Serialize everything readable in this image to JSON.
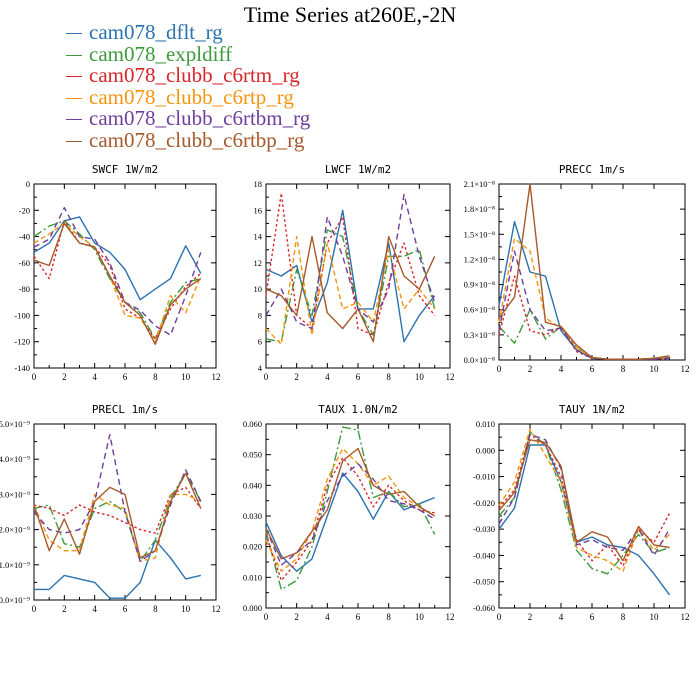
{
  "title": "Time Series at260E,-2N",
  "legend": [
    {
      "label": "cam078_dflt_rg",
      "color": "#2a72b0",
      "dash": ""
    },
    {
      "label": "cam078_expldiff",
      "color": "#3c9a3c",
      "dash": "9 3 2 3"
    },
    {
      "label": "cam078_clubb_c6rtm_rg",
      "color": "#d7262b",
      "dash": "2.5 2.5"
    },
    {
      "label": "cam078_clubb_c6rtp_rg",
      "color": "#f4950f",
      "dash": "5 3"
    },
    {
      "label": "cam078_clubb_c6rtbm_rg",
      "color": "#6e3f9c",
      "dash": "6 4"
    },
    {
      "label": "cam078_clubb_c6rtbp_rg",
      "color": "#a55a2c",
      "dash": ""
    }
  ],
  "chart_data": [
    {
      "type": "line",
      "title": "SWCF   1W/m2",
      "x": [
        0,
        1,
        2,
        3,
        4,
        5,
        6,
        7,
        8,
        9,
        10,
        11
      ],
      "xlim": [
        0,
        12
      ],
      "xticks": [
        "0",
        "2",
        "4",
        "6",
        "8",
        "10",
        "12"
      ],
      "ylim": [
        -140,
        0
      ],
      "yticks": [
        "0",
        "-20",
        "-40",
        "-60",
        "-80",
        "-100",
        "-120",
        "-140"
      ],
      "series": [
        {
          "values": [
            -52,
            -45,
            -28,
            -25,
            -45,
            -52,
            -65,
            -88,
            -80,
            -72,
            -47,
            -68
          ]
        },
        {
          "values": [
            -40,
            -32,
            -28,
            -38,
            -50,
            -72,
            -90,
            -98,
            -118,
            -90,
            -75,
            -72
          ]
        },
        {
          "values": [
            -55,
            -72,
            -28,
            -45,
            -48,
            -62,
            -95,
            -102,
            -118,
            -95,
            -78,
            -68
          ]
        },
        {
          "values": [
            -45,
            -38,
            -30,
            -40,
            -48,
            -70,
            -100,
            -102,
            -120,
            -85,
            -98,
            -70
          ]
        },
        {
          "values": [
            -48,
            -42,
            -18,
            -40,
            -42,
            -60,
            -90,
            -96,
            -108,
            -115,
            -85,
            -52
          ]
        },
        {
          "values": [
            -58,
            -62,
            -30,
            -45,
            -48,
            -70,
            -90,
            -100,
            -122,
            -92,
            -80,
            -72
          ]
        }
      ]
    },
    {
      "type": "line",
      "title": "LWCF   1W/m2",
      "x": [
        0,
        1,
        2,
        3,
        4,
        5,
        6,
        7,
        8,
        9,
        10,
        11
      ],
      "xlim": [
        0,
        12
      ],
      "xticks": [
        "0",
        "2",
        "4",
        "6",
        "8",
        "10",
        "12"
      ],
      "ylim": [
        4,
        18
      ],
      "yticks": [
        "18",
        "16",
        "14",
        "12",
        "10",
        "8",
        "6",
        "4"
      ],
      "series": [
        {
          "values": [
            11.5,
            11,
            11.8,
            7.5,
            10.5,
            16,
            8.5,
            8.5,
            13.5,
            6,
            8,
            9.5
          ]
        },
        {
          "values": [
            6.2,
            6,
            11.5,
            8,
            14.5,
            14,
            8.5,
            6.5,
            12.5,
            12.5,
            13,
            8.5
          ]
        },
        {
          "values": [
            9.5,
            17.3,
            8,
            7,
            13.5,
            15.5,
            7,
            6.5,
            10.5,
            13.5,
            9.5,
            8
          ]
        },
        {
          "values": [
            7,
            5.8,
            14,
            6.5,
            13.5,
            8.5,
            9,
            7.5,
            13,
            8.5,
            10,
            8.5
          ]
        },
        {
          "values": [
            8,
            10,
            7.5,
            7,
            15.5,
            12.5,
            8.5,
            7.5,
            10,
            17.2,
            12.5,
            9
          ]
        },
        {
          "values": [
            10,
            9.5,
            8,
            14,
            8.2,
            7,
            8.5,
            6,
            14,
            11,
            10,
            12.5
          ]
        }
      ]
    },
    {
      "type": "line",
      "title": "PRECC   1m/s",
      "x": [
        0,
        1,
        2,
        3,
        4,
        5,
        6,
        7,
        8,
        9,
        10,
        11
      ],
      "xlim": [
        0,
        12
      ],
      "xticks": [
        "0",
        "2",
        "4",
        "6",
        "8",
        "10",
        "12"
      ],
      "ylim": [
        0,
        2.1e-08
      ],
      "yticks": [
        "2.1×10⁻⁸",
        "1.8×10⁻⁸",
        "1.5×10⁻⁸",
        "1.2×10⁻⁸",
        "0.9×10⁻⁸",
        "0.6×10⁻⁸",
        "0.3×10⁻⁸",
        "0.0×10⁻⁸"
      ],
      "series": [
        {
          "values": [
            6.5e-09,
            1.65e-08,
            1.05e-08,
            1e-08,
            3.5e-09,
            1.2e-09,
            2e-10,
            1e-10,
            1e-10,
            1e-10,
            1e-10,
            3e-10
          ]
        },
        {
          "values": [
            4e-09,
            2e-09,
            6e-09,
            2.5e-09,
            4e-09,
            1.5e-09,
            2e-10,
            1e-10,
            1e-10,
            1e-10,
            2e-10,
            3e-10
          ]
        },
        {
          "values": [
            3e-09,
            1e-08,
            3.5e-09,
            3e-09,
            4e-09,
            1e-09,
            2e-10,
            1e-10,
            1e-10,
            1e-10,
            1e-10,
            2e-10
          ]
        },
        {
          "values": [
            4.5e-09,
            1.45e-08,
            1.3e-08,
            5e-09,
            3.8e-09,
            1.5e-09,
            3e-10,
            1e-10,
            1e-10,
            1e-10,
            2e-10,
            3e-10
          ]
        },
        {
          "values": [
            3.5e-09,
            1.3e-08,
            6e-09,
            3.5e-09,
            3.8e-09,
            1.2e-09,
            2e-10,
            1e-10,
            1e-10,
            1e-10,
            1e-10,
            2e-10
          ]
        },
        {
          "values": [
            5e-09,
            7.5e-09,
            2.1e-08,
            4.5e-09,
            4e-09,
            1.8e-09,
            3e-10,
            1e-10,
            1e-10,
            1e-10,
            2e-10,
            5e-10
          ]
        }
      ]
    },
    {
      "type": "line",
      "title": "PRECL   1m/s",
      "x": [
        0,
        1,
        2,
        3,
        4,
        5,
        6,
        7,
        8,
        9,
        10,
        11
      ],
      "xlim": [
        0,
        12
      ],
      "xticks": [
        "0",
        "2",
        "4",
        "6",
        "8",
        "10",
        "12"
      ],
      "ylim": [
        0,
        5e-09
      ],
      "yticks": [
        "5.0×10⁻⁹",
        "4.0×10⁻⁹",
        "3.0×10⁻⁹",
        "2.0×10⁻⁹",
        "1.0×10⁻⁹",
        "0.0×10⁻⁹"
      ],
      "series": [
        {
          "values": [
            3e-10,
            3e-10,
            7e-10,
            6e-10,
            5e-10,
            5e-11,
            5e-11,
            5e-10,
            1.7e-09,
            1.2e-09,
            6e-10,
            7e-10
          ]
        },
        {
          "values": [
            2.6e-09,
            2.7e-09,
            1.6e-09,
            1.5e-09,
            2.6e-09,
            2.8e-09,
            2.5e-09,
            1.1e-09,
            1.7e-09,
            2.9e-09,
            3.6e-09,
            2.8e-09
          ]
        },
        {
          "values": [
            2.7e-09,
            2.6e-09,
            2.4e-09,
            2.7e-09,
            2.5e-09,
            2.4e-09,
            2.2e-09,
            2e-09,
            1.9e-09,
            3e-09,
            3.2e-09,
            2.6e-09
          ]
        },
        {
          "values": [
            2.7e-09,
            1.7e-09,
            1.4e-09,
            1.4e-09,
            3e-09,
            2.7e-09,
            2.6e-09,
            1.1e-09,
            1.2e-09,
            3e-09,
            3e-09,
            2.8e-09
          ]
        },
        {
          "values": [
            2.5e-09,
            2e-09,
            1.9e-09,
            2e-09,
            2.8e-09,
            4.7e-09,
            2.5e-09,
            1.1e-09,
            1.4e-09,
            2.7e-09,
            3.7e-09,
            2.8e-09
          ]
        },
        {
          "values": [
            2.7e-09,
            1.4e-09,
            2.3e-09,
            1.3e-09,
            2.8e-09,
            3.2e-09,
            3e-09,
            1.2e-09,
            1.4e-09,
            2.8e-09,
            3.6e-09,
            2.6e-09
          ]
        }
      ]
    },
    {
      "type": "line",
      "title": "TAUX   1.0N/m2",
      "x": [
        0,
        1,
        2,
        3,
        4,
        5,
        6,
        7,
        8,
        9,
        10,
        11
      ],
      "xlim": [
        0,
        12
      ],
      "xticks": [
        "0",
        "2",
        "4",
        "6",
        "8",
        "10",
        "12"
      ],
      "ylim": [
        0,
        0.06
      ],
      "yticks": [
        "0.060",
        "0.050",
        "0.040",
        "0.030",
        "0.020",
        "0.010",
        "0.000"
      ],
      "series": [
        {
          "values": [
            0.028,
            0.017,
            0.012,
            0.016,
            0.03,
            0.044,
            0.038,
            0.029,
            0.038,
            0.032,
            0.034,
            0.036
          ]
        },
        {
          "values": [
            0.025,
            0.006,
            0.009,
            0.02,
            0.038,
            0.059,
            0.058,
            0.036,
            0.038,
            0.033,
            0.034,
            0.024
          ]
        },
        {
          "values": [
            0.024,
            0.009,
            0.015,
            0.022,
            0.04,
            0.049,
            0.043,
            0.033,
            0.04,
            0.035,
            0.032,
            0.031
          ]
        },
        {
          "values": [
            0.022,
            0.012,
            0.016,
            0.025,
            0.042,
            0.052,
            0.047,
            0.04,
            0.043,
            0.036,
            0.033,
            0.03
          ]
        },
        {
          "values": [
            0.026,
            0.014,
            0.018,
            0.022,
            0.035,
            0.043,
            0.047,
            0.042,
            0.035,
            0.034,
            0.032,
            0.029
          ]
        },
        {
          "values": [
            0.026,
            0.016,
            0.018,
            0.025,
            0.032,
            0.048,
            0.052,
            0.04,
            0.037,
            0.038,
            0.033,
            0.03
          ]
        }
      ]
    },
    {
      "type": "line",
      "title": "TAUY   1N/m2",
      "x": [
        0,
        1,
        2,
        3,
        4,
        5,
        6,
        7,
        8,
        9,
        10,
        11
      ],
      "xlim": [
        0,
        12
      ],
      "xticks": [
        "0",
        "2",
        "4",
        "6",
        "8",
        "10",
        "12"
      ],
      "ylim": [
        -0.06,
        0.01
      ],
      "yticks": [
        "0.010",
        "0.000",
        "-0.010",
        "-0.020",
        "-0.030",
        "-0.040",
        "-0.050",
        "-0.060"
      ],
      "series": [
        {
          "values": [
            -0.03,
            -0.022,
            0.002,
            0.002,
            -0.012,
            -0.035,
            -0.033,
            -0.036,
            -0.037,
            -0.04,
            -0.047,
            -0.055
          ]
        },
        {
          "values": [
            -0.025,
            -0.018,
            0.007,
            0.002,
            -0.015,
            -0.038,
            -0.045,
            -0.047,
            -0.04,
            -0.032,
            -0.039,
            -0.037
          ]
        },
        {
          "values": [
            -0.022,
            -0.015,
            0.006,
            0.002,
            -0.01,
            -0.034,
            -0.042,
            -0.036,
            -0.044,
            -0.03,
            -0.035,
            -0.024
          ]
        },
        {
          "values": [
            -0.021,
            -0.012,
            0.008,
            -0.002,
            -0.012,
            -0.037,
            -0.04,
            -0.042,
            -0.046,
            -0.03,
            -0.038,
            -0.032
          ]
        },
        {
          "values": [
            -0.028,
            -0.018,
            0.006,
            0.004,
            -0.007,
            -0.036,
            -0.034,
            -0.037,
            -0.038,
            -0.03,
            -0.04,
            -0.03
          ]
        },
        {
          "values": [
            -0.023,
            -0.016,
            0.004,
            0.003,
            -0.006,
            -0.035,
            -0.031,
            -0.033,
            -0.042,
            -0.029,
            -0.036,
            -0.037
          ]
        }
      ]
    }
  ]
}
